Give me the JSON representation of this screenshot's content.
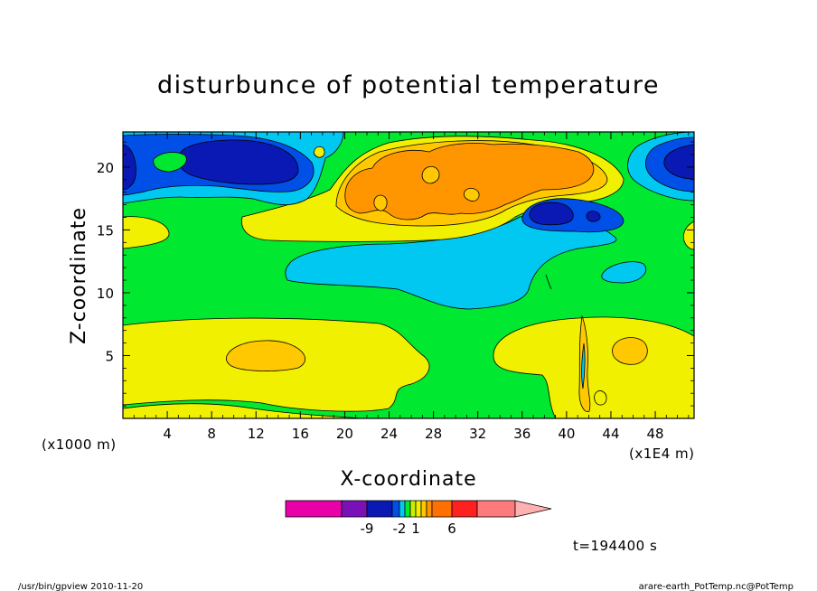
{
  "chart_data": {
    "type": "heatmap",
    "title": "disturbunce of potential temperature",
    "xlabel": "X-coordinate",
    "ylabel": "Z-coordinate",
    "x_unit_left": "(x1000 m)",
    "x_unit_right": "(x1E4 m)",
    "xlim": [
      0,
      51.5
    ],
    "ylim": [
      0,
      22.8
    ],
    "x_ticks": [
      4,
      8,
      12,
      16,
      20,
      24,
      28,
      32,
      36,
      40,
      44,
      48
    ],
    "y_ticks": [
      5,
      10,
      15,
      20
    ],
    "time_label": "t=194400 s",
    "colorbar": {
      "colors": [
        "#e800a8",
        "#7a10b8",
        "#0a18b4",
        "#0050e8",
        "#00c8f0",
        "#00e830",
        "#c8f000",
        "#f0f000",
        "#ffc800",
        "#ff9600",
        "#ff7000",
        "#ff2020",
        "#ff7a7a",
        "#ffb0b0"
      ],
      "tick_labels": [
        "-9",
        "-2",
        "1",
        "6"
      ],
      "tick_index": [
        2,
        4,
        6,
        9
      ]
    },
    "regions": [
      {
        "level": "negative-deep",
        "center": [
          8,
          21
        ],
        "note": "blue cell upper left"
      },
      {
        "level": "negative-deep",
        "center": [
          37.5,
          16.5
        ],
        "note": "blue cell center right"
      },
      {
        "level": "positive-high",
        "center": [
          30,
          20
        ],
        "note": "orange warm anomaly top center"
      },
      {
        "level": "positive-mid",
        "center": [
          13,
          5
        ],
        "note": "orange cell lower left"
      },
      {
        "level": "positive-mid",
        "center": [
          45,
          5.5
        ],
        "note": "orange cell lower right"
      }
    ]
  },
  "footer": {
    "left": "/usr/bin/gpview  2010-11-20",
    "right": "arare-earth_PotTemp.nc@PotTemp"
  }
}
